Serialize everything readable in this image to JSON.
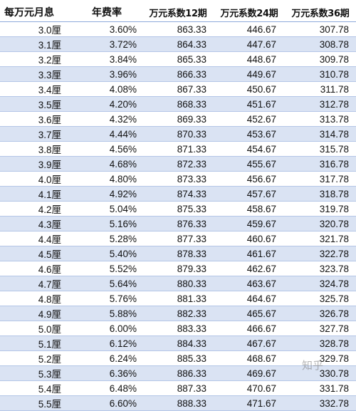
{
  "headers": [
    "每万元月息",
    "年费率",
    "万元系数12期",
    "万元系数24期",
    "万元系数36期"
  ],
  "rows": [
    [
      "3.0厘",
      "3.60%",
      "863.33",
      "446.67",
      "307.78"
    ],
    [
      "3.1厘",
      "3.72%",
      "864.33",
      "447.67",
      "308.78"
    ],
    [
      "3.2厘",
      "3.84%",
      "865.33",
      "448.67",
      "309.78"
    ],
    [
      "3.3厘",
      "3.96%",
      "866.33",
      "449.67",
      "310.78"
    ],
    [
      "3.4厘",
      "4.08%",
      "867.33",
      "450.67",
      "311.78"
    ],
    [
      "3.5厘",
      "4.20%",
      "868.33",
      "451.67",
      "312.78"
    ],
    [
      "3.6厘",
      "4.32%",
      "869.33",
      "452.67",
      "313.78"
    ],
    [
      "3.7厘",
      "4.44%",
      "870.33",
      "453.67",
      "314.78"
    ],
    [
      "3.8厘",
      "4.56%",
      "871.33",
      "454.67",
      "315.78"
    ],
    [
      "3.9厘",
      "4.68%",
      "872.33",
      "455.67",
      "316.78"
    ],
    [
      "4.0厘",
      "4.80%",
      "873.33",
      "456.67",
      "317.78"
    ],
    [
      "4.1厘",
      "4.92%",
      "874.33",
      "457.67",
      "318.78"
    ],
    [
      "4.2厘",
      "5.04%",
      "875.33",
      "458.67",
      "319.78"
    ],
    [
      "4.3厘",
      "5.16%",
      "876.33",
      "459.67",
      "320.78"
    ],
    [
      "4.4厘",
      "5.28%",
      "877.33",
      "460.67",
      "321.78"
    ],
    [
      "4.5厘",
      "5.40%",
      "878.33",
      "461.67",
      "322.78"
    ],
    [
      "4.6厘",
      "5.52%",
      "879.33",
      "462.67",
      "323.78"
    ],
    [
      "4.7厘",
      "5.64%",
      "880.33",
      "463.67",
      "324.78"
    ],
    [
      "4.8厘",
      "5.76%",
      "881.33",
      "464.67",
      "325.78"
    ],
    [
      "4.9厘",
      "5.88%",
      "882.33",
      "465.67",
      "326.78"
    ],
    [
      "5.0厘",
      "6.00%",
      "883.33",
      "466.67",
      "327.78"
    ],
    [
      "5.1厘",
      "6.12%",
      "884.33",
      "467.67",
      "328.78"
    ],
    [
      "5.2厘",
      "6.24%",
      "885.33",
      "468.67",
      "329.78"
    ],
    [
      "5.3厘",
      "6.36%",
      "886.33",
      "469.67",
      "330.78"
    ],
    [
      "5.4厘",
      "6.48%",
      "887.33",
      "470.67",
      "331.78"
    ],
    [
      "5.5厘",
      "6.60%",
      "888.33",
      "471.67",
      "332.78"
    ]
  ],
  "watermark": "知乎",
  "colors": {
    "stripe": "#dae3f3",
    "text": "#111111",
    "rule": "#b4c6e7"
  }
}
